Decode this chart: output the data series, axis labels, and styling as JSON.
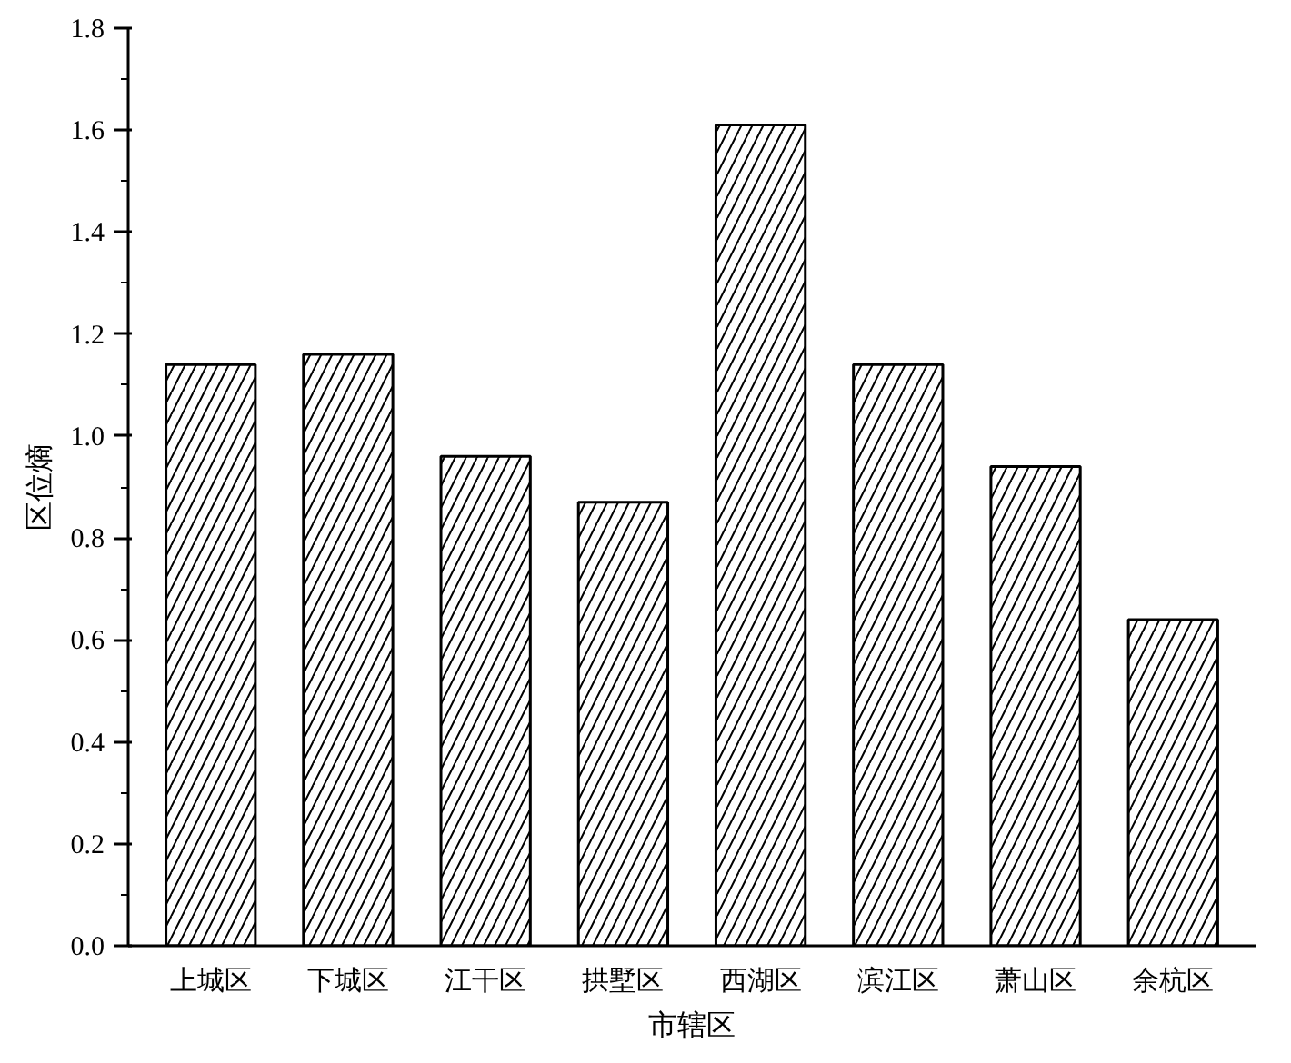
{
  "chart_data": {
    "type": "bar",
    "xlabel": "市辖区",
    "ylabel": "区位熵",
    "categories": [
      "上城区",
      "下城区",
      "江干区",
      "拱墅区",
      "西湖区",
      "滨江区",
      "萧山区",
      "余杭区"
    ],
    "values": [
      1.14,
      1.16,
      0.96,
      0.87,
      1.61,
      1.14,
      0.94,
      0.64
    ],
    "color": "#ffffff",
    "ylim": [
      0,
      1.8
    ],
    "yticks": [
      {
        "value": 0,
        "label": "0.0"
      },
      {
        "value": 0.2,
        "label": "0.2"
      },
      {
        "value": 0.4,
        "label": "0.4"
      },
      {
        "value": 0.6,
        "label": "0.6"
      },
      {
        "value": 0.8,
        "label": "0.8"
      },
      {
        "value": 1.0,
        "label": "1.0"
      },
      {
        "value": 1.2,
        "label": "1.2"
      },
      {
        "value": 1.4,
        "label": "1.4"
      },
      {
        "value": 1.6,
        "label": "1.6"
      },
      {
        "value": 1.8,
        "label": "1.8"
      }
    ],
    "grid": false
  }
}
